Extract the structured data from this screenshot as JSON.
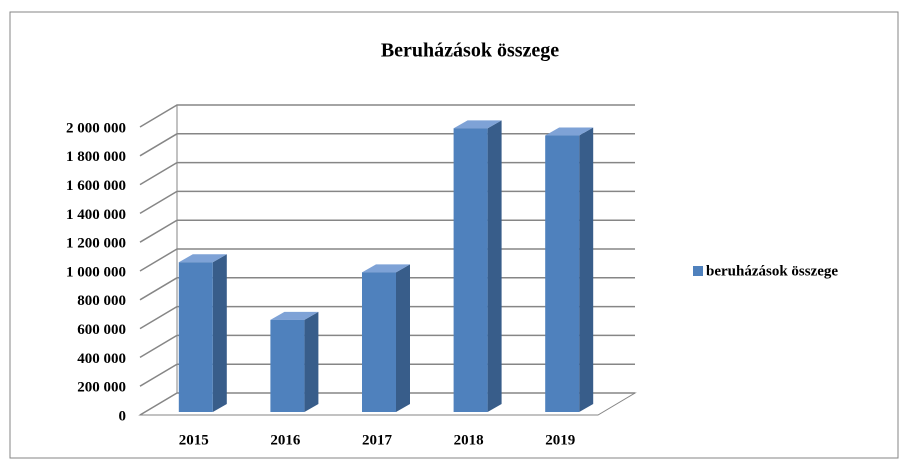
{
  "chart_data": {
    "type": "bar3d",
    "title": "Beruházások összege",
    "categories": [
      "2015",
      "2016",
      "2017",
      "2018",
      "2019"
    ],
    "series": [
      {
        "name": "beruházások összege",
        "color": "#4f81bd",
        "values": [
          1040000,
          640000,
          970000,
          1970000,
          1920000
        ]
      }
    ],
    "ylim": [
      0,
      2000000
    ],
    "yticks": [
      0,
      {
        "value": 200000,
        "label": "200 000"
      },
      {
        "value": 400000,
        "label": "400 000"
      },
      {
        "value": 600000,
        "label": "600 000"
      },
      {
        "value": 800000,
        "label": "800 000"
      },
      {
        "value": 1000000,
        "label": "1 000 000"
      },
      {
        "value": 1200000,
        "label": "1 200 000"
      },
      {
        "value": 1400000,
        "label": "1 400 000"
      },
      {
        "value": 1600000,
        "label": "1 600 000"
      },
      {
        "value": 1800000,
        "label": "1 800 000"
      },
      {
        "value": 2000000,
        "label": "2 000 000"
      }
    ],
    "grid": true,
    "legend": "right"
  }
}
